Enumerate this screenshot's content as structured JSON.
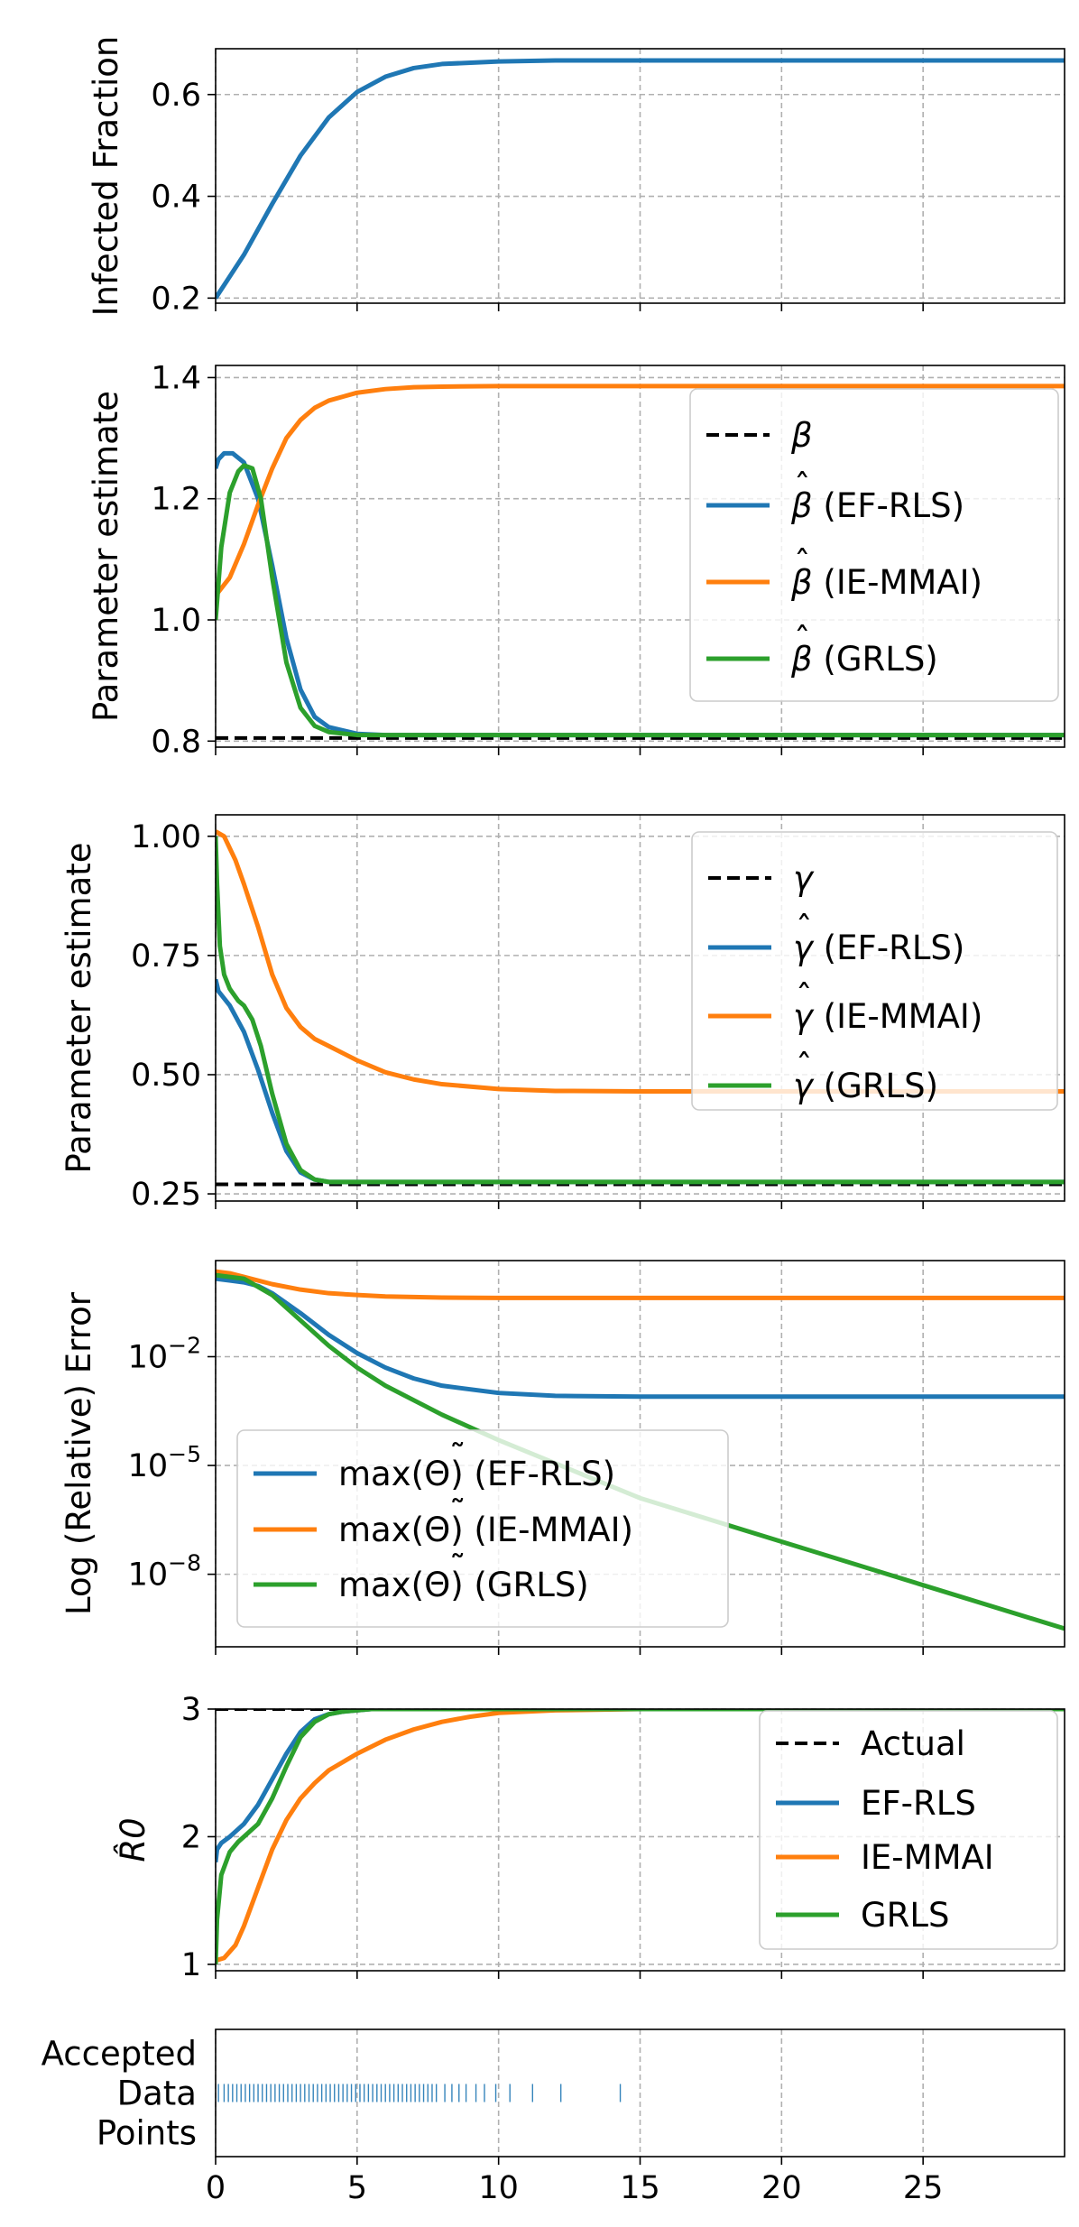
{
  "chart_data": [
    {
      "type": "line",
      "id": "infected",
      "ylabel": "Infected Fraction",
      "ylim": [
        0.19,
        0.69
      ],
      "yscale": "linear",
      "yticks": [
        {
          "v": 0.2,
          "label": "0.2"
        },
        {
          "v": 0.4,
          "label": "0.4"
        },
        {
          "v": 0.6,
          "label": "0.6"
        }
      ],
      "series": [
        {
          "name": "Infected",
          "color": "#1f77b4",
          "style": "solid",
          "x": [
            0,
            1,
            2,
            3,
            4,
            5,
            6,
            7,
            8,
            10,
            12,
            15,
            20,
            25,
            30
          ],
          "y": [
            0.2,
            0.285,
            0.385,
            0.48,
            0.555,
            0.605,
            0.635,
            0.652,
            0.66,
            0.665,
            0.667,
            0.667,
            0.667,
            0.667,
            0.667
          ]
        }
      ],
      "legend": null
    },
    {
      "type": "line",
      "id": "beta",
      "ylabel": "Parameter estimate",
      "ylim": [
        0.79,
        1.42
      ],
      "yscale": "linear",
      "yticks": [
        {
          "v": 0.8,
          "label": "0.8"
        },
        {
          "v": 1.0,
          "label": "1.0"
        },
        {
          "v": 1.2,
          "label": "1.2"
        },
        {
          "v": 1.4,
          "label": "1.4"
        }
      ],
      "series": [
        {
          "name": "β",
          "color": "#000000",
          "style": "dashed",
          "x": [
            0,
            30
          ],
          "y": [
            0.805,
            0.805
          ]
        },
        {
          "name": "β̂ (EF-RLS)",
          "color": "#1f77b4",
          "style": "solid",
          "x": [
            0,
            0.1,
            0.3,
            0.6,
            1,
            1.5,
            2,
            2.5,
            3,
            3.5,
            4,
            5,
            6,
            8,
            10,
            30
          ],
          "y": [
            1.25,
            1.265,
            1.275,
            1.275,
            1.26,
            1.2,
            1.09,
            0.97,
            0.885,
            0.84,
            0.823,
            0.812,
            0.81,
            0.81,
            0.81,
            0.81
          ]
        },
        {
          "name": "β̂ (IE-MMAI)",
          "color": "#ff7f0e",
          "style": "solid",
          "x": [
            0,
            0.5,
            1,
            1.5,
            2,
            2.5,
            3,
            3.5,
            4,
            5,
            6,
            7,
            8,
            10,
            15,
            30
          ],
          "y": [
            1.04,
            1.07,
            1.125,
            1.19,
            1.25,
            1.3,
            1.33,
            1.35,
            1.362,
            1.375,
            1.381,
            1.384,
            1.385,
            1.386,
            1.386,
            1.386
          ]
        },
        {
          "name": "β̂ (GRLS)",
          "color": "#2ca02c",
          "style": "solid",
          "x": [
            0,
            0.2,
            0.5,
            0.8,
            1,
            1.3,
            1.6,
            2,
            2.5,
            3,
            3.5,
            4,
            5,
            6,
            8,
            30
          ],
          "y": [
            1.0,
            1.12,
            1.21,
            1.245,
            1.255,
            1.25,
            1.2,
            1.07,
            0.93,
            0.855,
            0.825,
            0.815,
            0.81,
            0.81,
            0.81,
            0.81
          ]
        }
      ],
      "legend": {
        "placement": "top-right",
        "entries": [
          {
            "base": "β",
            "hat": false,
            "suffix": ""
          },
          {
            "base": "β",
            "hat": true,
            "suffix": " (EF-RLS)"
          },
          {
            "base": "β",
            "hat": true,
            "suffix": " (IE-MMAI)"
          },
          {
            "base": "β",
            "hat": true,
            "suffix": " (GRLS)"
          }
        ]
      }
    },
    {
      "type": "line",
      "id": "gamma",
      "ylabel": "Parameter estimate",
      "ylim": [
        0.235,
        1.045
      ],
      "yscale": "linear",
      "yticks": [
        {
          "v": 0.25,
          "label": "0.25"
        },
        {
          "v": 0.5,
          "label": "0.50"
        },
        {
          "v": 0.75,
          "label": "0.75"
        },
        {
          "v": 1.0,
          "label": "1.00"
        }
      ],
      "series": [
        {
          "name": "γ",
          "color": "#000000",
          "style": "dashed",
          "x": [
            0,
            30
          ],
          "y": [
            0.27,
            0.27
          ]
        },
        {
          "name": "γ̂ (EF-RLS)",
          "color": "#1f77b4",
          "style": "solid",
          "x": [
            0,
            0.1,
            0.5,
            1,
            1.5,
            2,
            2.5,
            3,
            3.5,
            4,
            5,
            6,
            8,
            30
          ],
          "y": [
            0.7,
            0.675,
            0.645,
            0.59,
            0.51,
            0.42,
            0.34,
            0.295,
            0.28,
            0.275,
            0.275,
            0.275,
            0.275,
            0.275
          ]
        },
        {
          "name": "γ̂ (IE-MMAI)",
          "color": "#ff7f0e",
          "style": "solid",
          "x": [
            0,
            0.3,
            0.7,
            1,
            1.5,
            2,
            2.5,
            3,
            3.5,
            4,
            5,
            6,
            7,
            8,
            10,
            12,
            15,
            20,
            30
          ],
          "y": [
            1.01,
            1.0,
            0.95,
            0.9,
            0.81,
            0.71,
            0.64,
            0.6,
            0.575,
            0.56,
            0.53,
            0.505,
            0.49,
            0.48,
            0.47,
            0.466,
            0.465,
            0.465,
            0.465
          ]
        },
        {
          "name": "γ̂ (GRLS)",
          "color": "#2ca02c",
          "style": "solid",
          "x": [
            0,
            0.05,
            0.15,
            0.3,
            0.5,
            0.8,
            1,
            1.3,
            1.6,
            2,
            2.5,
            3,
            3.5,
            4,
            5,
            6,
            30
          ],
          "y": [
            1.0,
            0.9,
            0.77,
            0.71,
            0.68,
            0.655,
            0.645,
            0.615,
            0.56,
            0.46,
            0.355,
            0.3,
            0.28,
            0.275,
            0.275,
            0.275,
            0.275
          ]
        }
      ],
      "legend": {
        "placement": "top-right",
        "entries": [
          {
            "base": "γ",
            "hat": false,
            "suffix": ""
          },
          {
            "base": "γ",
            "hat": true,
            "suffix": " (EF-RLS)"
          },
          {
            "base": "γ",
            "hat": true,
            "suffix": " (IE-MMAI)"
          },
          {
            "base": "γ",
            "hat": true,
            "suffix": " (GRLS)"
          }
        ]
      }
    },
    {
      "type": "line",
      "id": "error",
      "ylabel": "Log (Relative) Error",
      "ylim": [
        -10.0,
        0.65
      ],
      "yscale": "log10",
      "yticks": [
        {
          "v": -2,
          "label": "10",
          "exp": "−2"
        },
        {
          "v": -5,
          "label": "10",
          "exp": "−5"
        },
        {
          "v": -8,
          "label": "10",
          "exp": "−8"
        }
      ],
      "series": [
        {
          "name": "max(Θ̃) (EF-RLS)",
          "color": "#1f77b4",
          "style": "solid",
          "x": [
            0,
            1,
            1.5,
            2,
            3,
            4,
            5,
            6,
            7,
            8,
            10,
            12,
            15,
            20,
            30
          ],
          "y": [
            0.15,
            0.05,
            -0.05,
            -0.25,
            -0.8,
            -1.4,
            -1.9,
            -2.3,
            -2.6,
            -2.8,
            -3.0,
            -3.08,
            -3.1,
            -3.1,
            -3.1
          ]
        },
        {
          "name": "max(Θ̃) (IE-MMAI)",
          "color": "#ff7f0e",
          "style": "solid",
          "x": [
            0,
            0.5,
            1,
            2,
            3,
            4,
            5,
            6,
            8,
            10,
            30
          ],
          "y": [
            0.35,
            0.3,
            0.2,
            0.0,
            -0.15,
            -0.25,
            -0.3,
            -0.34,
            -0.37,
            -0.38,
            -0.38
          ]
        },
        {
          "name": "max(Θ̃) (GRLS)",
          "color": "#2ca02c",
          "style": "solid",
          "x": [
            0,
            1,
            2,
            3,
            4,
            5,
            6,
            8,
            10,
            15,
            20,
            25,
            30
          ],
          "y": [
            0.25,
            0.15,
            -0.3,
            -1.0,
            -1.7,
            -2.3,
            -2.8,
            -3.6,
            -4.3,
            -5.9,
            -7.1,
            -8.3,
            -9.5
          ]
        }
      ],
      "legend": {
        "placement": "lower-left",
        "entries": [
          {
            "prefix": "max(",
            "suffix": ") (EF-RLS)"
          },
          {
            "prefix": "max(",
            "suffix": ") (IE-MMAI)"
          },
          {
            "prefix": "max(",
            "suffix": ") (GRLS)"
          }
        ]
      }
    },
    {
      "type": "line",
      "id": "r0",
      "ylabel": "R̂0",
      "ylim": [
        0.95,
        3.0
      ],
      "yscale": "linear",
      "yticks": [
        {
          "v": 1,
          "label": "1"
        },
        {
          "v": 2,
          "label": "2"
        },
        {
          "v": 3,
          "label": "3"
        }
      ],
      "series": [
        {
          "name": "Actual",
          "color": "#000000",
          "style": "dashed",
          "x": [
            0,
            30
          ],
          "y": [
            3.0,
            3.0
          ]
        },
        {
          "name": "EF-RLS",
          "color": "#1f77b4",
          "style": "solid",
          "x": [
            0,
            0.05,
            0.2,
            0.5,
            1,
            1.5,
            2,
            2.5,
            3,
            3.5,
            4,
            4.5,
            5,
            5.5,
            6,
            7,
            30
          ],
          "y": [
            1.8,
            1.9,
            1.95,
            2.0,
            2.1,
            2.25,
            2.45,
            2.65,
            2.82,
            2.92,
            2.96,
            2.98,
            2.99,
            3.0,
            3.0,
            3.0,
            3.0
          ]
        },
        {
          "name": "IE-MMAI",
          "color": "#ff7f0e",
          "style": "solid",
          "x": [
            0,
            0.3,
            0.7,
            1,
            1.5,
            2,
            2.5,
            3,
            3.5,
            4,
            5,
            6,
            7,
            8,
            9,
            10,
            12,
            15,
            30
          ],
          "y": [
            1.03,
            1.05,
            1.15,
            1.3,
            1.6,
            1.9,
            2.13,
            2.3,
            2.42,
            2.52,
            2.65,
            2.76,
            2.84,
            2.9,
            2.94,
            2.97,
            2.99,
            3.0,
            3.0
          ]
        },
        {
          "name": "GRLS",
          "color": "#2ca02c",
          "style": "solid",
          "x": [
            0,
            0.05,
            0.2,
            0.5,
            0.8,
            1,
            1.5,
            2,
            2.5,
            3,
            3.5,
            4,
            4.5,
            5,
            5.5,
            6,
            30
          ],
          "y": [
            1.0,
            1.35,
            1.7,
            1.88,
            1.96,
            2.0,
            2.1,
            2.3,
            2.55,
            2.78,
            2.9,
            2.96,
            2.98,
            2.99,
            3.0,
            3.0,
            3.0
          ]
        }
      ],
      "legend": {
        "placement": "top-right",
        "entries": [
          "Actual",
          "EF-RLS",
          "IE-MMAI",
          "GRLS"
        ]
      }
    },
    {
      "type": "event",
      "id": "accepted",
      "ylabel_lines": [
        "Accepted",
        "Data",
        "Points"
      ],
      "color": "#1f77b4",
      "x": [
        0.1,
        0.3,
        0.45,
        0.6,
        0.75,
        0.9,
        1.05,
        1.2,
        1.35,
        1.5,
        1.65,
        1.8,
        1.95,
        2.1,
        2.25,
        2.4,
        2.55,
        2.7,
        2.85,
        3.0,
        3.15,
        3.3,
        3.45,
        3.6,
        3.75,
        3.9,
        4.05,
        4.2,
        4.35,
        4.5,
        4.65,
        4.8,
        4.95,
        5.1,
        5.25,
        5.4,
        5.55,
        5.7,
        5.85,
        6.0,
        6.15,
        6.3,
        6.45,
        6.6,
        6.75,
        6.9,
        7.05,
        7.2,
        7.35,
        7.5,
        7.65,
        7.8,
        8.1,
        8.35,
        8.6,
        8.85,
        9.2,
        9.5,
        9.9,
        10.4,
        11.2,
        12.2,
        14.3
      ]
    }
  ],
  "x_axis": {
    "xlim": [
      0,
      30
    ],
    "ticks": [
      {
        "v": 0,
        "label": "0"
      },
      {
        "v": 5,
        "label": "5"
      },
      {
        "v": 10,
        "label": "10"
      },
      {
        "v": 15,
        "label": "15"
      },
      {
        "v": 20,
        "label": "20"
      },
      {
        "v": 25,
        "label": "25"
      }
    ]
  }
}
